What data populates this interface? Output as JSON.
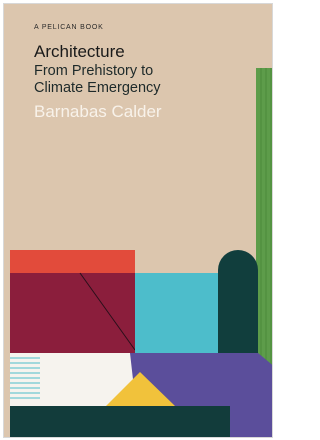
{
  "cover": {
    "series": "A PELICAN BOOK",
    "title": "Architecture",
    "subtitle": "From Prehistory to Climate Emergency",
    "author": "Barnabas Calder"
  }
}
